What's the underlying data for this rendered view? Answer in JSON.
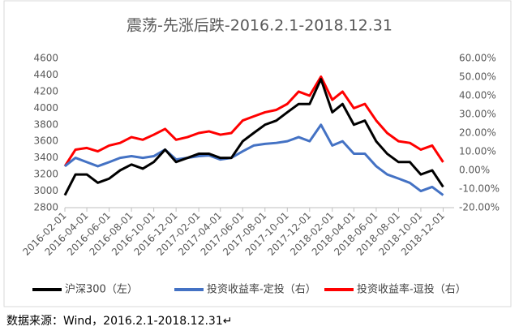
{
  "chart_data": {
    "type": "line",
    "title": "震荡-先涨后跌-2016.2.1-2018.12.31",
    "x": [
      "2016-02-01",
      "2016-03-01",
      "2016-04-01",
      "2016-05-01",
      "2016-06-01",
      "2016-07-01",
      "2016-08-01",
      "2016-09-01",
      "2016-10-01",
      "2016-11-01",
      "2016-12-01",
      "2017-01-01",
      "2017-02-01",
      "2017-03-01",
      "2017-04-01",
      "2017-05-01",
      "2017-06-01",
      "2017-07-01",
      "2017-08-01",
      "2017-09-01",
      "2017-10-01",
      "2017-11-01",
      "2017-12-01",
      "2018-01-01",
      "2018-02-01",
      "2018-03-01",
      "2018-04-01",
      "2018-05-01",
      "2018-06-01",
      "2018-07-01",
      "2018-08-01",
      "2018-09-01",
      "2018-10-01",
      "2018-11-01",
      "2018-12-01"
    ],
    "xlim": [
      "2016-02-01",
      "2018-12-31"
    ],
    "xticks": [
      "2016-02-01",
      "2016-04-01",
      "2016-06-01",
      "2016-08-01",
      "2016-10-01",
      "2016-12-01",
      "2017-02-01",
      "2017-04-01",
      "2017-06-01",
      "2017-08-01",
      "2017-10-01",
      "2017-12-01",
      "2018-02-01",
      "2018-04-01",
      "2018-06-01",
      "2018-08-01",
      "2018-10-01",
      "2018-12-01"
    ],
    "ylim": [
      2800,
      4600
    ],
    "yticks": [
      2800,
      3000,
      3200,
      3400,
      3600,
      3800,
      4000,
      4200,
      4400,
      4600
    ],
    "y2lim": [
      -20,
      60
    ],
    "y2ticks": [
      {
        "value": -20,
        "label": "-20.00%"
      },
      {
        "value": -10,
        "label": "-10.00%"
      },
      {
        "value": 0,
        "label": "0.00%"
      },
      {
        "value": 10,
        "label": "10.00%"
      },
      {
        "value": 20,
        "label": "20.00%"
      },
      {
        "value": 30,
        "label": "30.00%"
      },
      {
        "value": 40,
        "label": "40.00%"
      },
      {
        "value": 50,
        "label": "50.00%"
      },
      {
        "value": 60,
        "label": "60.00%"
      }
    ],
    "legend": "bottom",
    "series": [
      {
        "name": "沪深300（左）",
        "color": "#000000",
        "axis": "y",
        "values": [
          2950,
          3200,
          3200,
          3100,
          3150,
          3250,
          3320,
          3270,
          3350,
          3500,
          3350,
          3400,
          3450,
          3450,
          3400,
          3400,
          3600,
          3700,
          3800,
          3850,
          3950,
          4050,
          4050,
          4350,
          3950,
          4050,
          3800,
          3850,
          3600,
          3450,
          3350,
          3350,
          3200,
          3250,
          3050
        ]
      },
      {
        "name": "投资收益率-定投（右）",
        "color": "#4472c4",
        "axis": "y2",
        "values": [
          2.2,
          6.7,
          4.4,
          2.2,
          4.4,
          6.7,
          7.6,
          6.7,
          7.6,
          11.1,
          5.8,
          6.7,
          7.6,
          8.0,
          5.8,
          6.7,
          10.2,
          13.3,
          14.2,
          14.7,
          15.6,
          17.8,
          15.6,
          24.4,
          13.3,
          15.6,
          8.9,
          8.9,
          2.2,
          -2.2,
          -4.4,
          -6.7,
          -11.1,
          -8.9,
          -13.3
        ]
      },
      {
        "name": "投资收益率-逗投（右）",
        "color": "#ff0000",
        "axis": "y2",
        "values": [
          2.2,
          11.1,
          12.0,
          10.2,
          13.3,
          14.7,
          17.8,
          16.4,
          19.1,
          22.2,
          16.4,
          17.8,
          20.0,
          20.9,
          19.1,
          20.0,
          26.7,
          28.9,
          31.1,
          32.4,
          35.6,
          42.2,
          40.0,
          50.2,
          37.8,
          42.2,
          33.3,
          35.6,
          26.7,
          20.0,
          15.6,
          14.7,
          11.1,
          13.3,
          4.4
        ]
      }
    ],
    "source": "数据来源：Wind，2016.2.1-2018.12.31↵"
  }
}
